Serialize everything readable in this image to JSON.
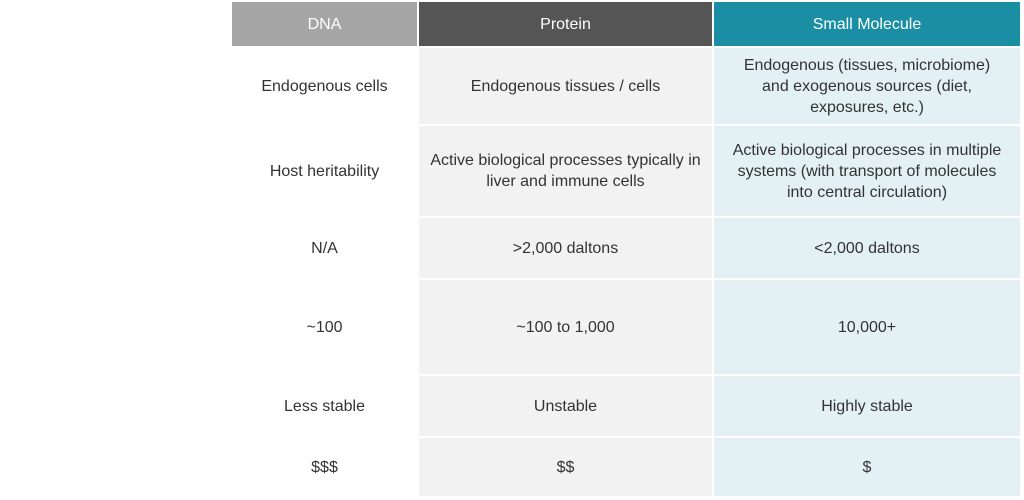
{
  "table": {
    "columns": [
      "DNA",
      "Protein",
      "Small Molecule"
    ],
    "rows": [
      [
        "Endogenous cells",
        "Endogenous tissues / cells",
        "Endogenous (tissues, microbiome) and exogenous sources (diet, exposures, etc.)"
      ],
      [
        "Host heritability",
        "Active biological processes typically in liver and immune cells",
        "Active biological processes in multiple systems (with transport of molecules into central circulation)"
      ],
      [
        "N/A",
        ">2,000 daltons",
        "<2,000 daltons"
      ],
      [
        "~100",
        "~100 to 1,000",
        "10,000+"
      ],
      [
        "Less stable",
        "Unstable",
        "Highly stable"
      ],
      [
        "$$$",
        "$$",
        "$"
      ]
    ]
  }
}
